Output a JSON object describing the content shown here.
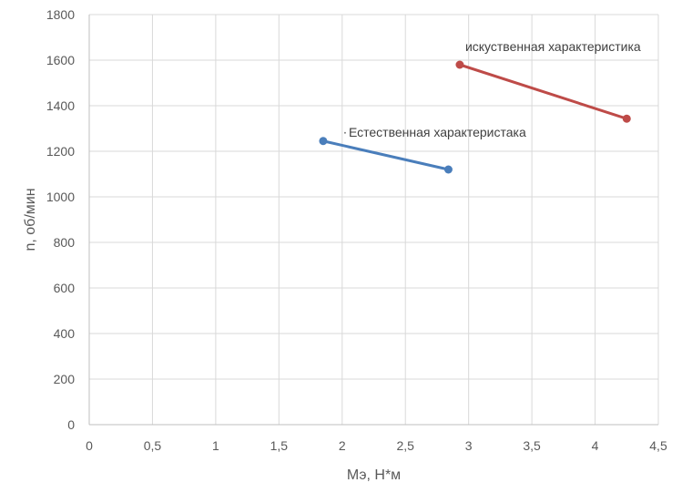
{
  "chart_data": {
    "type": "scatter",
    "title": "",
    "xlabel": "Мэ, Н*м",
    "ylabel": "n, об/мин",
    "xlim": [
      0,
      4.5
    ],
    "ylim": [
      0,
      1800
    ],
    "x_ticks": [
      0,
      0.5,
      1,
      1.5,
      2,
      2.5,
      3,
      3.5,
      4,
      4.5
    ],
    "x_tick_labels": [
      "0",
      "0,5",
      "1",
      "1,5",
      "2",
      "2,5",
      "3",
      "3,5",
      "4",
      "4,5"
    ],
    "y_ticks": [
      0,
      200,
      400,
      600,
      800,
      1000,
      1200,
      1400,
      1600,
      1800
    ],
    "y_tick_labels": [
      "0",
      "200",
      "400",
      "600",
      "800",
      "1000",
      "1200",
      "1400",
      "1600",
      "1800"
    ],
    "grid": true,
    "series": [
      {
        "color": "#4a7ebb",
        "points": [
          {
            "x": 1.85,
            "y": 1245
          },
          {
            "x": 2.84,
            "y": 1120
          }
        ],
        "annotation": "Естественная характеристака"
      },
      {
        "color": "#be4b48",
        "points": [
          {
            "x": 2.93,
            "y": 1580
          },
          {
            "x": 4.25,
            "y": 1343
          }
        ],
        "annotation": "искуственная характеристика"
      }
    ]
  }
}
